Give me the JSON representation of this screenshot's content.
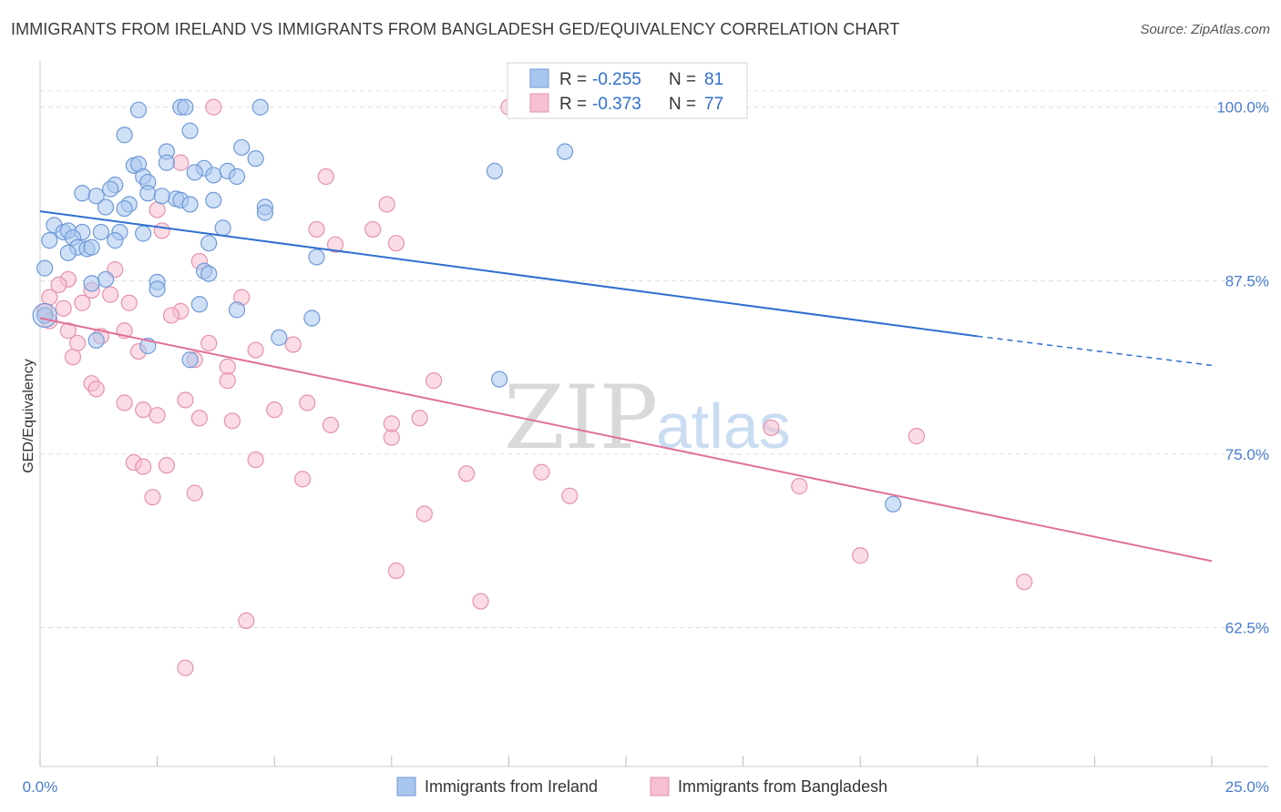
{
  "title": "IMMIGRANTS FROM IRELAND VS IMMIGRANTS FROM BANGLADESH GED/EQUIVALENCY CORRELATION CHART",
  "source": "Source: ZipAtlas.com",
  "watermark": {
    "zip": "ZIP",
    "atlas": "atlas"
  },
  "legend": {
    "r_label": "R =",
    "n_label": "N =",
    "rows": [
      {
        "r": "-0.255",
        "n": "81",
        "color": "#a9c6ee",
        "stroke": "#6f9ad8"
      },
      {
        "r": "-0.373",
        "n": "77",
        "color": "#f7c0d0",
        "stroke": "#e592ad"
      }
    ]
  },
  "bottom_legend": [
    "Immigrants from Ireland",
    "Immigrants from Bangladesh"
  ],
  "chart_data": {
    "type": "scatter",
    "title": "IMMIGRANTS FROM IRELAND VS IMMIGRANTS FROM BANGLADESH GED/EQUIVALENCY CORRELATION CHART",
    "xlabel": "",
    "ylabel": "GED/Equivalency",
    "xlim": [
      0,
      25
    ],
    "ylim": [
      52.5,
      103
    ],
    "x_tick_labels": [
      "0.0%",
      "25.0%"
    ],
    "y_ticks": [
      62.5,
      75.0,
      87.5,
      100.0
    ],
    "y_tick_labels": [
      "62.5%",
      "75.0%",
      "87.5%",
      "100.0%"
    ],
    "grid": true,
    "series": [
      {
        "name": "Immigrants from Ireland",
        "color": "#6f9ad8",
        "fill": "#a9c6ee",
        "trend": {
          "x": [
            0,
            20
          ],
          "y": [
            92.5,
            83.5
          ],
          "dashed_to": [
            25,
            81.4
          ],
          "color": "#2f6fcf"
        },
        "points": [
          [
            2.1,
            99.8
          ],
          [
            3.0,
            100.0
          ],
          [
            3.1,
            100.0
          ],
          [
            4.7,
            100.0
          ],
          [
            1.8,
            98.0
          ],
          [
            3.2,
            98.3
          ],
          [
            4.3,
            97.1
          ],
          [
            4.6,
            96.3
          ],
          [
            2.7,
            96.8
          ],
          [
            2.0,
            95.8
          ],
          [
            2.1,
            95.9
          ],
          [
            2.7,
            96.0
          ],
          [
            3.5,
            95.6
          ],
          [
            3.3,
            95.3
          ],
          [
            3.7,
            95.1
          ],
          [
            4.0,
            95.4
          ],
          [
            4.2,
            95.0
          ],
          [
            2.2,
            95.0
          ],
          [
            2.3,
            94.6
          ],
          [
            1.6,
            94.4
          ],
          [
            1.5,
            94.1
          ],
          [
            2.3,
            93.8
          ],
          [
            0.9,
            93.8
          ],
          [
            1.2,
            93.6
          ],
          [
            2.9,
            93.4
          ],
          [
            3.0,
            93.3
          ],
          [
            3.7,
            93.3
          ],
          [
            2.6,
            93.6
          ],
          [
            1.9,
            93.0
          ],
          [
            1.4,
            92.8
          ],
          [
            1.8,
            92.7
          ],
          [
            3.2,
            93.0
          ],
          [
            4.8,
            92.8
          ],
          [
            4.8,
            92.4
          ],
          [
            0.3,
            91.5
          ],
          [
            0.5,
            91.0
          ],
          [
            0.6,
            91.1
          ],
          [
            0.9,
            91.0
          ],
          [
            1.3,
            91.0
          ],
          [
            1.7,
            91.0
          ],
          [
            2.2,
            90.9
          ],
          [
            3.9,
            91.3
          ],
          [
            0.2,
            90.4
          ],
          [
            1.6,
            90.4
          ],
          [
            3.6,
            90.2
          ],
          [
            0.7,
            90.6
          ],
          [
            0.8,
            89.9
          ],
          [
            1.0,
            89.8
          ],
          [
            1.1,
            89.9
          ],
          [
            0.6,
            89.5
          ],
          [
            0.1,
            88.4
          ],
          [
            1.4,
            87.6
          ],
          [
            1.1,
            87.3
          ],
          [
            2.5,
            87.4
          ],
          [
            3.5,
            88.2
          ],
          [
            3.6,
            88.0
          ],
          [
            5.9,
            89.2
          ],
          [
            2.5,
            86.9
          ],
          [
            3.4,
            85.8
          ],
          [
            4.2,
            85.4
          ],
          [
            5.8,
            84.8
          ],
          [
            0.1,
            85.0
          ],
          [
            1.2,
            83.2
          ],
          [
            2.3,
            82.8
          ],
          [
            5.1,
            83.4
          ],
          [
            3.2,
            81.8
          ],
          [
            9.7,
            95.4
          ],
          [
            11.2,
            96.8
          ],
          [
            9.8,
            80.4
          ],
          [
            18.2,
            71.4
          ]
        ]
      },
      {
        "name": "Immigrants from Bangladesh",
        "color": "#e592ad",
        "fill": "#f7c0d0",
        "trend": {
          "x": [
            0,
            25
          ],
          "y": [
            84.8,
            67.3
          ],
          "color": "#e0709a"
        },
        "points": [
          [
            3.7,
            100.0
          ],
          [
            10.0,
            100.0
          ],
          [
            3.0,
            96.0
          ],
          [
            6.1,
            95.0
          ],
          [
            2.5,
            92.6
          ],
          [
            7.4,
            93.0
          ],
          [
            5.9,
            91.2
          ],
          [
            7.1,
            91.2
          ],
          [
            2.6,
            91.1
          ],
          [
            6.3,
            90.1
          ],
          [
            7.6,
            90.2
          ],
          [
            3.4,
            88.9
          ],
          [
            1.6,
            88.3
          ],
          [
            0.6,
            87.6
          ],
          [
            0.4,
            87.2
          ],
          [
            1.1,
            86.8
          ],
          [
            4.3,
            86.3
          ],
          [
            1.5,
            86.5
          ],
          [
            0.2,
            86.3
          ],
          [
            0.9,
            85.9
          ],
          [
            1.9,
            85.9
          ],
          [
            0.5,
            85.5
          ],
          [
            0.1,
            85.3
          ],
          [
            3.0,
            85.3
          ],
          [
            2.8,
            85.0
          ],
          [
            0.2,
            84.6
          ],
          [
            0.6,
            83.9
          ],
          [
            1.8,
            83.9
          ],
          [
            1.3,
            83.5
          ],
          [
            0.8,
            83.0
          ],
          [
            3.6,
            83.0
          ],
          [
            5.4,
            82.9
          ],
          [
            2.1,
            82.4
          ],
          [
            4.6,
            82.5
          ],
          [
            0.7,
            82.0
          ],
          [
            3.3,
            81.8
          ],
          [
            4.0,
            81.3
          ],
          [
            4.0,
            80.3
          ],
          [
            1.1,
            80.1
          ],
          [
            8.4,
            80.3
          ],
          [
            1.2,
            79.7
          ],
          [
            3.1,
            78.9
          ],
          [
            1.8,
            78.7
          ],
          [
            5.7,
            78.7
          ],
          [
            2.2,
            78.2
          ],
          [
            5.0,
            78.2
          ],
          [
            2.5,
            77.8
          ],
          [
            3.4,
            77.6
          ],
          [
            4.1,
            77.4
          ],
          [
            6.2,
            77.1
          ],
          [
            7.5,
            76.2
          ],
          [
            7.5,
            77.2
          ],
          [
            8.1,
            77.6
          ],
          [
            15.6,
            76.9
          ],
          [
            18.7,
            76.3
          ],
          [
            4.6,
            74.6
          ],
          [
            2.0,
            74.4
          ],
          [
            2.2,
            74.1
          ],
          [
            2.7,
            74.2
          ],
          [
            5.6,
            73.2
          ],
          [
            9.1,
            73.6
          ],
          [
            10.7,
            73.7
          ],
          [
            11.3,
            72.0
          ],
          [
            16.2,
            72.7
          ],
          [
            3.3,
            72.2
          ],
          [
            2.4,
            71.9
          ],
          [
            8.2,
            70.7
          ],
          [
            17.5,
            67.7
          ],
          [
            21.0,
            65.8
          ],
          [
            7.6,
            66.6
          ],
          [
            9.4,
            64.4
          ],
          [
            4.4,
            63.0
          ],
          [
            3.1,
            59.6
          ]
        ]
      }
    ]
  }
}
